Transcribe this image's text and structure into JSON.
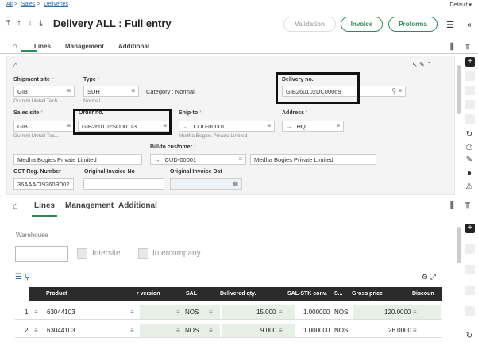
{
  "breadcrumb": [
    "All",
    ">",
    "Sales",
    ">",
    "Deliveries"
  ],
  "user_menu": "Default",
  "title": "Delivery ALL : Full entry",
  "buttons": {
    "validation": "Validation",
    "invoice": "Invoice",
    "proforma": "Proforma"
  },
  "tabs": {
    "lines": "Lines",
    "management": "Management",
    "additional": "Additional"
  },
  "labels": {
    "shipment_site": "Shipment site",
    "type": "Type",
    "category": "Category : Normal",
    "delivery_no": "Delivery no.",
    "sales_site": "Sales site",
    "order_no": "Order no.",
    "ship_to": "Ship-to",
    "address": "Address",
    "bill_to": "Bill-to customer",
    "gst": "GST Reg. Number",
    "orig_inv": "Original Invoice No",
    "orig_inv_dat": "Original Invoice Dat",
    "req": "*"
  },
  "values": {
    "shipment_site": "GIB",
    "shipment_site_name": "Gummi Metall Tech...",
    "type": "SDH",
    "type_name": "Normal",
    "delivery_no": "GIB260102DC00069",
    "sales_site": "GIB",
    "sales_site_name": "Gummi Metall Tec...",
    "order_no": "GIB260102SO00113",
    "ship_to": "CUD-00001",
    "ship_to_name": "Medha Bogies Private Limited",
    "address": "HQ",
    "customer_name": "Medha Bogies Private Limited",
    "bill_to": "CUD-00001",
    "bill_to_name": "Medha Bogies Private Limited",
    "gst": "36AAACI9260R002"
  },
  "warehouse": {
    "label": "Warehouse",
    "intersite": "Intersite",
    "intercompany": "Intercompany"
  },
  "grid": {
    "headers": {
      "product": "Product",
      "version": "r version",
      "sal": "SAL",
      "delivered": "Delivered qty.",
      "conv": "SAL-STK conv.",
      "s": "S...",
      "gross": "Gross price",
      "disc": "Discoun"
    },
    "rows": [
      {
        "num": "1",
        "product": "63044103",
        "sal": "NOS",
        "delivered": "15.000",
        "conv": "1.000000",
        "s": "NOS",
        "gross": "120.0000"
      },
      {
        "num": "2",
        "product": "63044103",
        "sal": "NOS",
        "delivered": "9.000",
        "conv": "1.000000",
        "s": "NOS",
        "gross": "26.0000"
      }
    ]
  }
}
